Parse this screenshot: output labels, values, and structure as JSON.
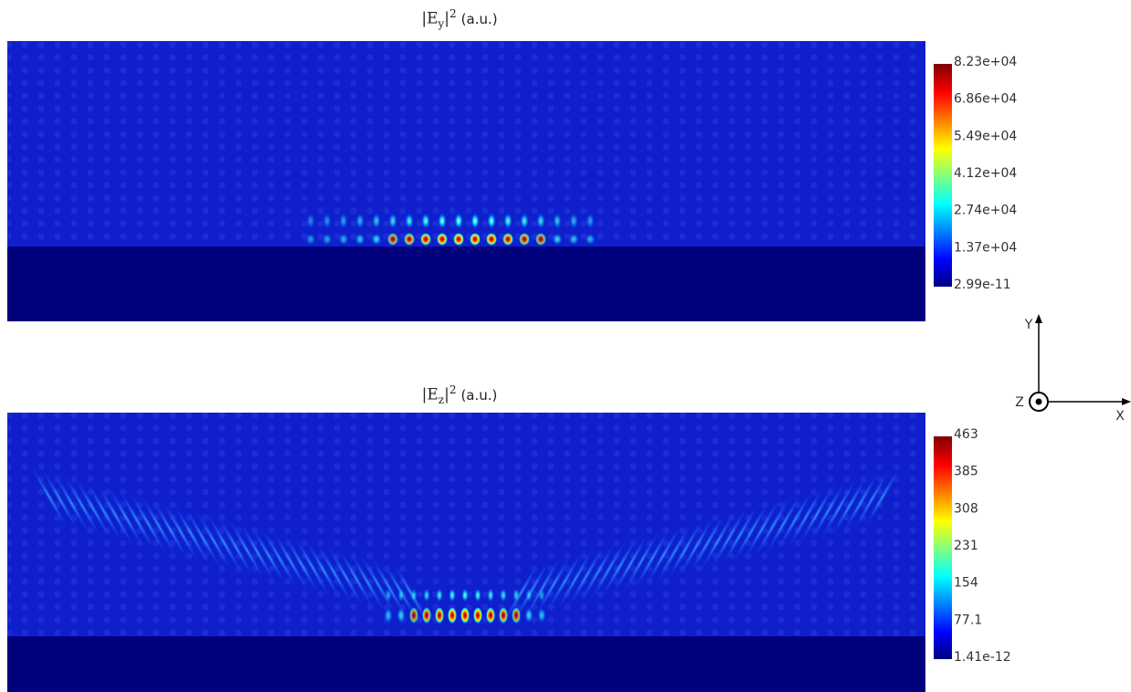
{
  "panels": [
    {
      "title": {
        "bar": "|",
        "symbol": "E",
        "sub": "y",
        "sup": "2",
        "unit": "(a.u.)"
      },
      "colorbar_labels": [
        "8.23e+04",
        "6.86e+04",
        "5.49e+04",
        "4.12e+04",
        "2.74e+04",
        "1.37e+04",
        "2.99e-11"
      ]
    },
    {
      "title": {
        "bar": "|",
        "symbol": "E",
        "sub": "z",
        "sup": "2",
        "unit": "(a.u.)"
      },
      "colorbar_labels": [
        "463",
        "385",
        "308",
        "231",
        "154",
        "77.1",
        "1.41e-12"
      ]
    }
  ],
  "axes": {
    "y": "Y",
    "z": "Z",
    "x": "X"
  }
}
